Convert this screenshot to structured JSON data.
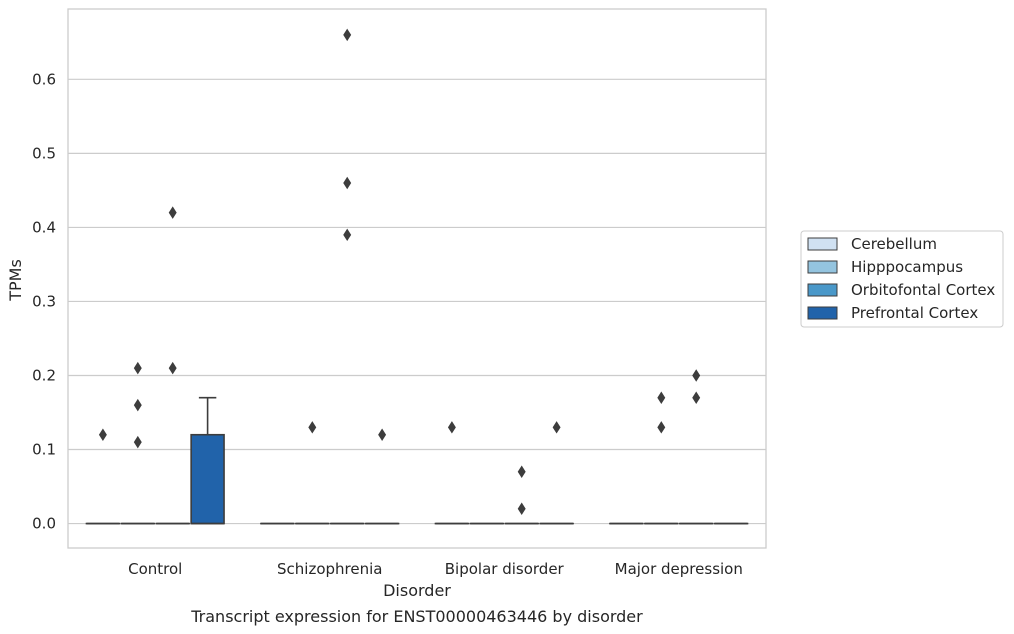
{
  "chart_data": {
    "type": "box",
    "caption": "Transcript expression for ENST00000463446 by disorder",
    "xlabel": "Disorder",
    "ylabel": "TPMs",
    "ylim": [
      -0.033,
      0.695
    ],
    "yticks": [
      0.0,
      0.1,
      0.2,
      0.3,
      0.4,
      0.5,
      0.6
    ],
    "ytick_labels": [
      "0.0",
      "0.1",
      "0.2",
      "0.3",
      "0.4",
      "0.5",
      "0.6"
    ],
    "grid": "horizontal",
    "legend_position": "right",
    "categories": [
      "Control",
      "Schizophrenia",
      "Bipolar disorder",
      "Major depression"
    ],
    "series": [
      {
        "name": "Cerebellum",
        "color": "#d0e1f2",
        "boxes": [
          {
            "q1": 0,
            "median": 0,
            "q3": 0,
            "whisker_low": 0,
            "whisker_high": 0,
            "outliers": [
              0.12
            ]
          },
          {
            "q1": 0,
            "median": 0,
            "q3": 0,
            "whisker_low": 0,
            "whisker_high": 0,
            "outliers": []
          },
          {
            "q1": 0,
            "median": 0,
            "q3": 0,
            "whisker_low": 0,
            "whisker_high": 0,
            "outliers": [
              0.13
            ]
          },
          {
            "q1": 0,
            "median": 0,
            "q3": 0,
            "whisker_low": 0,
            "whisker_high": 0,
            "outliers": []
          }
        ]
      },
      {
        "name": "Hipppocampus",
        "color": "#94c4df",
        "boxes": [
          {
            "q1": 0,
            "median": 0,
            "q3": 0,
            "whisker_low": 0,
            "whisker_high": 0,
            "outliers": [
              0.21,
              0.16,
              0.11
            ]
          },
          {
            "q1": 0,
            "median": 0,
            "q3": 0,
            "whisker_low": 0,
            "whisker_high": 0,
            "outliers": [
              0.13
            ]
          },
          {
            "q1": 0,
            "median": 0,
            "q3": 0,
            "whisker_low": 0,
            "whisker_high": 0,
            "outliers": []
          },
          {
            "q1": 0,
            "median": 0,
            "q3": 0,
            "whisker_low": 0,
            "whisker_high": 0,
            "outliers": [
              0.17,
              0.13
            ]
          }
        ]
      },
      {
        "name": "Orbitofontal Cortex",
        "color": "#4a98c9",
        "boxes": [
          {
            "q1": 0,
            "median": 0,
            "q3": 0,
            "whisker_low": 0,
            "whisker_high": 0,
            "outliers": [
              0.42,
              0.21
            ]
          },
          {
            "q1": 0,
            "median": 0,
            "q3": 0,
            "whisker_low": 0,
            "whisker_high": 0,
            "outliers": [
              0.66,
              0.46,
              0.39
            ]
          },
          {
            "q1": 0,
            "median": 0,
            "q3": 0,
            "whisker_low": 0,
            "whisker_high": 0,
            "outliers": [
              0.07,
              0.02
            ]
          },
          {
            "q1": 0,
            "median": 0,
            "q3": 0,
            "whisker_low": 0,
            "whisker_high": 0,
            "outliers": [
              0.2,
              0.17
            ]
          }
        ]
      },
      {
        "name": "Prefrontal Cortex",
        "color": "#2163aa",
        "boxes": [
          {
            "q1": 0,
            "median": 0,
            "q3": 0.12,
            "whisker_low": 0,
            "whisker_high": 0.17,
            "outliers": []
          },
          {
            "q1": 0,
            "median": 0,
            "q3": 0,
            "whisker_low": 0,
            "whisker_high": 0,
            "outliers": [
              0.12
            ]
          },
          {
            "q1": 0,
            "median": 0,
            "q3": 0,
            "whisker_low": 0,
            "whisker_high": 0,
            "outliers": [
              0.13
            ]
          },
          {
            "q1": 0,
            "median": 0,
            "q3": 0,
            "whisker_low": 0,
            "whisker_high": 0,
            "outliers": []
          }
        ]
      }
    ],
    "colors": {
      "line": "#3d3d3d",
      "grid": "#cccccc",
      "frame": "#cccccc"
    }
  }
}
